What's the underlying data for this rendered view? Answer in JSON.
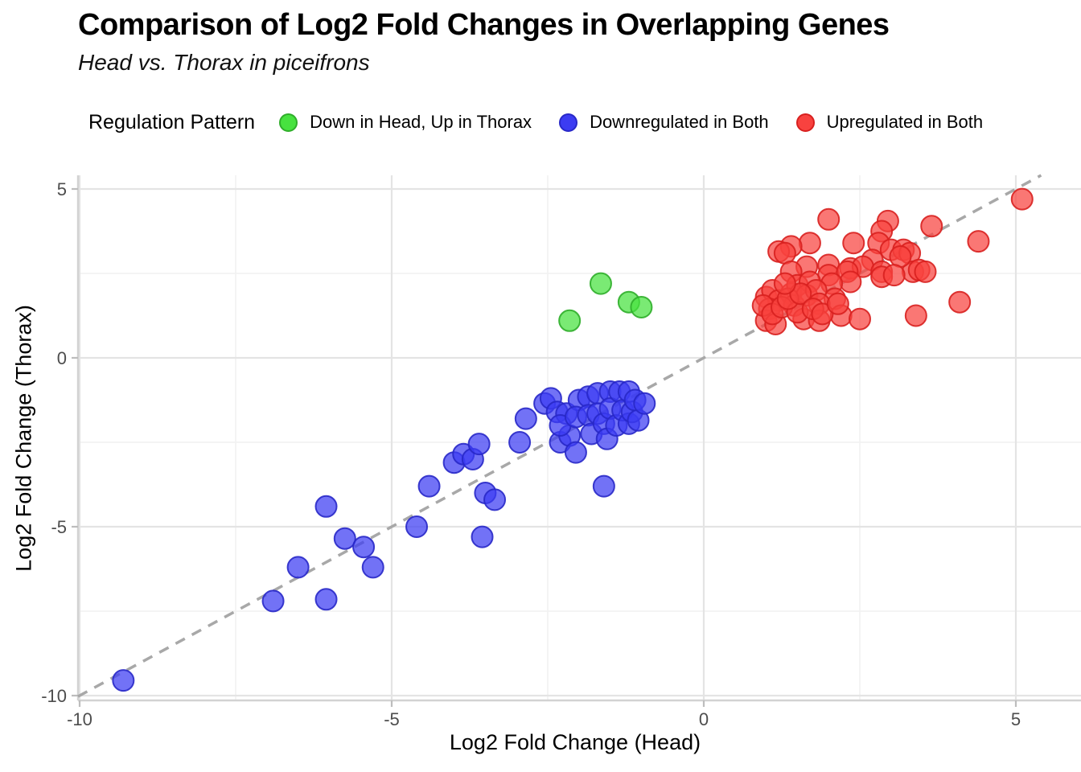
{
  "figure": {
    "title": "Comparison of Log2 Fold Changes in Overlapping Genes",
    "subtitle": "Head vs. Thorax in piceifrons"
  },
  "legend": {
    "title": "Regulation Pattern",
    "items": [
      {
        "label": "Down in Head, Up in Thorax",
        "color": "#47e23f",
        "border": "#2fae2a"
      },
      {
        "label": "Downregulated in Both",
        "color": "#3c3cf2",
        "border": "#2828c8"
      },
      {
        "label": "Upregulated in Both",
        "color": "#f8423f",
        "border": "#d8201f"
      }
    ]
  },
  "chart_data": {
    "type": "scatter",
    "title": "Comparison of Log2 Fold Changes in Overlapping Genes",
    "subtitle": "Head vs. Thorax in piceifrons",
    "xlabel": "Log2 Fold Change (Head)",
    "ylabel": "Log2 Fold Change (Thorax)",
    "xlim": [
      -10.05,
      5.95
    ],
    "ylim": [
      -10.4,
      5.4
    ],
    "xticks": [
      -10,
      -5,
      0,
      5
    ],
    "yticks": [
      5,
      0,
      -5,
      -10
    ],
    "minor_xticks": [
      -7.5,
      -2.5,
      2.5
    ],
    "minor_yticks": [
      2.5,
      -2.5,
      -7.5
    ],
    "grid": true,
    "legend_position": "top",
    "reference_line": {
      "type": "identity y=x",
      "style": "dashed",
      "color": "#a8a8a8"
    },
    "series": [
      {
        "name": "Down in Head, Up in Thorax",
        "color": "#47e23f",
        "border": "#2fae2a",
        "points": [
          [
            -2.15,
            1.1
          ],
          [
            -1.65,
            2.2
          ],
          [
            -1.2,
            1.65
          ],
          [
            -1.0,
            1.5
          ]
        ]
      },
      {
        "name": "Downregulated in Both",
        "color": "#3c3cf2",
        "border": "#2828c8",
        "points": [
          [
            -9.3,
            -9.55
          ],
          [
            -6.9,
            -7.2
          ],
          [
            -6.05,
            -7.15
          ],
          [
            -6.5,
            -6.2
          ],
          [
            -5.3,
            -6.2
          ],
          [
            -5.75,
            -5.35
          ],
          [
            -5.45,
            -5.6
          ],
          [
            -6.05,
            -4.4
          ],
          [
            -4.6,
            -5.0
          ],
          [
            -4.4,
            -3.8
          ],
          [
            -3.55,
            -5.3
          ],
          [
            -3.5,
            -4.0
          ],
          [
            -3.35,
            -4.2
          ],
          [
            -4.0,
            -3.1
          ],
          [
            -3.85,
            -2.85
          ],
          [
            -3.7,
            -3.0
          ],
          [
            -3.6,
            -2.55
          ],
          [
            -2.85,
            -1.8
          ],
          [
            -2.95,
            -2.5
          ],
          [
            -1.6,
            -3.8
          ],
          [
            -2.55,
            -1.35
          ],
          [
            -2.45,
            -1.2
          ],
          [
            -2.35,
            -1.6
          ],
          [
            -2.3,
            -2.5
          ],
          [
            -2.2,
            -1.65
          ],
          [
            -2.15,
            -2.3
          ],
          [
            -2.05,
            -2.8
          ],
          [
            -2.3,
            -2.0
          ],
          [
            -2.0,
            -1.25
          ],
          [
            -2.05,
            -1.75
          ],
          [
            -1.85,
            -1.15
          ],
          [
            -1.85,
            -1.7
          ],
          [
            -1.8,
            -2.25
          ],
          [
            -1.7,
            -1.05
          ],
          [
            -1.7,
            -1.65
          ],
          [
            -1.6,
            -1.95
          ],
          [
            -1.55,
            -2.4
          ],
          [
            -1.5,
            -1.0
          ],
          [
            -1.5,
            -1.5
          ],
          [
            -1.4,
            -2.0
          ],
          [
            -1.35,
            -1.0
          ],
          [
            -1.3,
            -1.55
          ],
          [
            -1.2,
            -1.95
          ],
          [
            -1.2,
            -1.0
          ],
          [
            -1.15,
            -1.6
          ],
          [
            -1.1,
            -1.25
          ],
          [
            -1.05,
            -1.85
          ],
          [
            -0.95,
            -1.35
          ]
        ]
      },
      {
        "name": "Upregulated in Both",
        "color": "#f8423f",
        "border": "#d8201f",
        "points": [
          [
            2.0,
            4.1
          ],
          [
            2.95,
            4.05
          ],
          [
            2.85,
            3.75
          ],
          [
            2.8,
            3.4
          ],
          [
            2.4,
            3.4
          ],
          [
            1.7,
            3.4
          ],
          [
            1.4,
            3.3
          ],
          [
            1.2,
            3.15
          ],
          [
            1.3,
            3.1
          ],
          [
            3.0,
            3.2
          ],
          [
            3.2,
            3.2
          ],
          [
            3.3,
            3.1
          ],
          [
            3.65,
            3.9
          ],
          [
            4.4,
            3.45
          ],
          [
            5.1,
            4.7
          ],
          [
            2.7,
            2.9
          ],
          [
            2.0,
            2.75
          ],
          [
            2.35,
            2.65
          ],
          [
            2.55,
            2.7
          ],
          [
            2.85,
            2.55
          ],
          [
            1.65,
            2.7
          ],
          [
            1.4,
            2.55
          ],
          [
            3.35,
            2.55
          ],
          [
            2.0,
            2.45
          ],
          [
            2.3,
            2.55
          ],
          [
            3.45,
            2.6
          ],
          [
            3.55,
            2.55
          ],
          [
            4.1,
            1.65
          ],
          [
            3.15,
            3.0
          ],
          [
            2.85,
            2.4
          ],
          [
            3.05,
            2.45
          ],
          [
            2.35,
            2.25
          ],
          [
            2.05,
            2.2
          ],
          [
            2.1,
            1.75
          ],
          [
            2.2,
            1.25
          ],
          [
            2.5,
            1.15
          ],
          [
            3.4,
            1.25
          ],
          [
            1.0,
            1.8
          ],
          [
            1.1,
            2.0
          ],
          [
            1.2,
            1.7
          ],
          [
            1.05,
            1.45
          ],
          [
            1.0,
            1.1
          ],
          [
            1.15,
            1.0
          ],
          [
            1.4,
            1.9
          ],
          [
            1.45,
            1.55
          ],
          [
            1.5,
            2.15
          ],
          [
            1.7,
            2.25
          ],
          [
            1.65,
            1.85
          ],
          [
            1.8,
            2.0
          ],
          [
            1.85,
            1.6
          ],
          [
            1.6,
            1.15
          ],
          [
            1.85,
            1.1
          ],
          [
            0.95,
            1.55
          ],
          [
            1.1,
            1.3
          ],
          [
            1.25,
            1.5
          ],
          [
            1.5,
            1.35
          ],
          [
            1.35,
            1.75
          ],
          [
            1.55,
            1.9
          ],
          [
            1.75,
            1.45
          ],
          [
            1.9,
            1.3
          ],
          [
            2.15,
            1.6
          ],
          [
            1.3,
            2.2
          ]
        ]
      }
    ]
  }
}
